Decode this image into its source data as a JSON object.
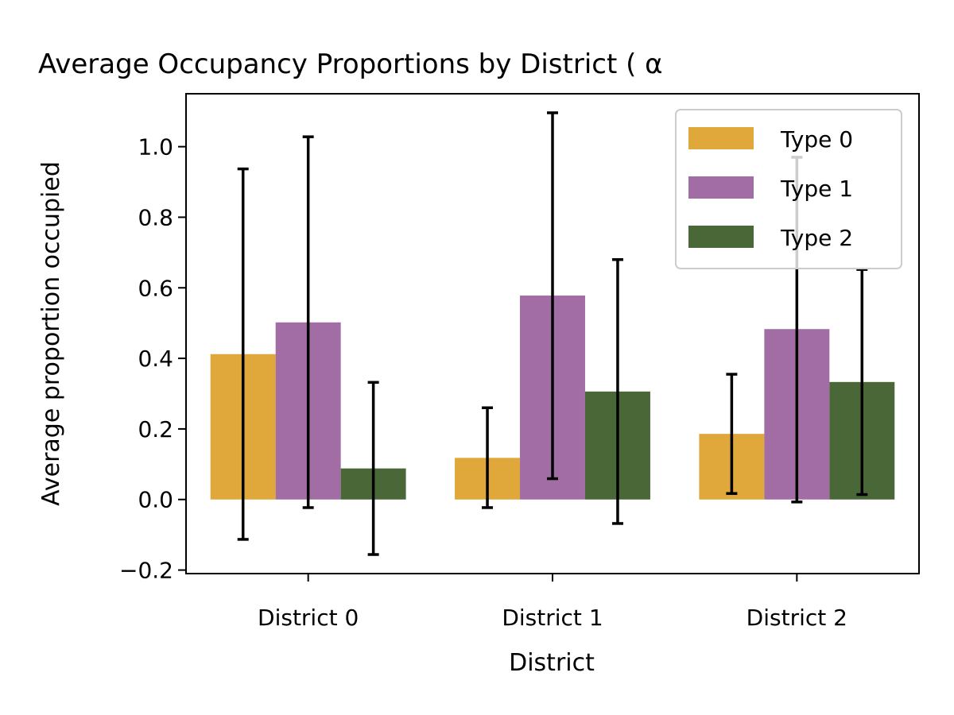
{
  "chart_data": {
    "type": "bar",
    "title": "Average Occupancy Proportions by District ( α",
    "xlabel": "District",
    "ylabel": "Average proportion occupied",
    "categories": [
      "District 0",
      "District 1",
      "District 2"
    ],
    "ylim": [
      -0.21,
      1.15
    ],
    "yticks": [
      -0.2,
      0.0,
      0.2,
      0.4,
      0.6,
      0.8,
      1.0
    ],
    "ytick_labels": [
      "−0.2",
      "0.0",
      "0.2",
      "0.4",
      "0.6",
      "0.8",
      "1.0"
    ],
    "grid": false,
    "legend_position": "top-right",
    "series": [
      {
        "name": "Type 0",
        "color": "#E0A73A",
        "values": [
          0.412,
          0.118,
          0.186
        ],
        "err_low": [
          -0.113,
          -0.023,
          0.017
        ],
        "err_high": [
          0.937,
          0.26,
          0.355
        ]
      },
      {
        "name": "Type 1",
        "color": "#A26CA5",
        "values": [
          0.502,
          0.578,
          0.483
        ],
        "err_low": [
          -0.023,
          0.059,
          -0.007
        ],
        "err_high": [
          1.028,
          1.096,
          0.97
        ]
      },
      {
        "name": "Type 2",
        "color": "#4A6837",
        "values": [
          0.088,
          0.306,
          0.333
        ],
        "err_low": [
          -0.156,
          -0.068,
          0.014
        ],
        "err_high": [
          0.332,
          0.68,
          0.652
        ]
      }
    ]
  }
}
